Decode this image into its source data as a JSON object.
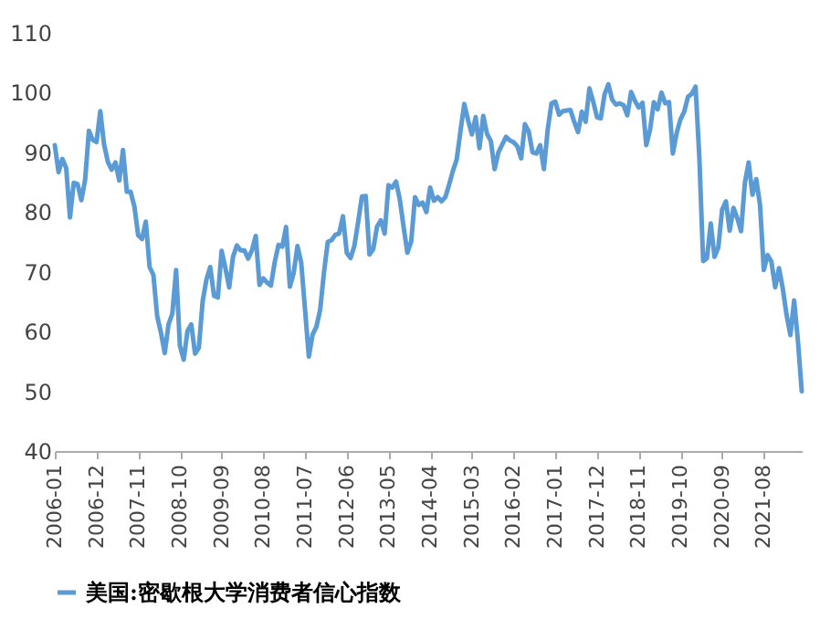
{
  "chart_data": {
    "type": "line",
    "categories": [
      "2006-01",
      null,
      null,
      null,
      null,
      null,
      null,
      null,
      null,
      null,
      null,
      "2006-12",
      null,
      null,
      null,
      null,
      null,
      null,
      null,
      null,
      null,
      null,
      "2007-11",
      null,
      null,
      null,
      null,
      null,
      null,
      null,
      null,
      null,
      null,
      "2008-10",
      null,
      null,
      null,
      null,
      null,
      null,
      null,
      null,
      null,
      null,
      "2009-09",
      null,
      null,
      null,
      null,
      null,
      null,
      null,
      null,
      null,
      null,
      "2010-08",
      null,
      null,
      null,
      null,
      null,
      null,
      null,
      null,
      null,
      null,
      "2011-07",
      null,
      null,
      null,
      null,
      null,
      null,
      null,
      null,
      null,
      null,
      "2012-06",
      null,
      null,
      null,
      null,
      null,
      null,
      null,
      null,
      null,
      null,
      "2013-05",
      null,
      null,
      null,
      null,
      null,
      null,
      null,
      null,
      null,
      null,
      "2014-04",
      null,
      null,
      null,
      null,
      null,
      null,
      null,
      null,
      null,
      null,
      "2015-03",
      null,
      null,
      null,
      null,
      null,
      null,
      null,
      null,
      null,
      null,
      "2016-02",
      null,
      null,
      null,
      null,
      null,
      null,
      null,
      null,
      null,
      null,
      "2017-01",
      null,
      null,
      null,
      null,
      null,
      null,
      null,
      null,
      null,
      null,
      "2017-12",
      null,
      null,
      null,
      null,
      null,
      null,
      null,
      null,
      null,
      null,
      "2018-11",
      null,
      null,
      null,
      null,
      null,
      null,
      null,
      null,
      null,
      null,
      "2019-10",
      null,
      null,
      null,
      null,
      null,
      null,
      null,
      null,
      null,
      null,
      "2020-09",
      null,
      null,
      null,
      null,
      null,
      null,
      null,
      null,
      null,
      null,
      "2021-08",
      null,
      null,
      null,
      null,
      null,
      null,
      null,
      null,
      null,
      null
    ],
    "series": [
      {
        "name": "美国:密歇根大学消费者信心指数",
        "color": "#5b9bd5",
        "values": [
          91.2,
          86.7,
          88.9,
          87.4,
          79.1,
          84.9,
          84.7,
          82.0,
          85.4,
          93.6,
          92.1,
          91.7,
          96.9,
          91.3,
          88.4,
          87.1,
          88.3,
          85.3,
          90.4,
          83.4,
          83.4,
          80.9,
          76.1,
          75.5,
          78.4,
          70.8,
          69.5,
          62.6,
          59.8,
          56.4,
          61.2,
          63.0,
          70.3,
          57.6,
          55.3,
          60.1,
          61.2,
          56.3,
          57.3,
          65.1,
          68.7,
          70.8,
          66.0,
          65.7,
          73.5,
          70.6,
          67.4,
          72.5,
          74.4,
          73.6,
          73.6,
          72.2,
          73.6,
          76.0,
          67.8,
          68.9,
          68.2,
          67.7,
          71.6,
          74.5,
          74.2,
          77.5,
          67.5,
          69.8,
          74.3,
          71.5,
          63.7,
          55.8,
          59.5,
          60.8,
          63.7,
          69.9,
          75.0,
          75.3,
          76.2,
          76.4,
          79.3,
          73.2,
          72.3,
          74.3,
          78.3,
          82.6,
          82.7,
          72.9,
          73.8,
          77.6,
          78.6,
          76.4,
          84.5,
          84.1,
          85.1,
          82.1,
          77.5,
          73.2,
          75.1,
          82.5,
          81.2,
          81.6,
          80.0,
          84.1,
          81.9,
          82.5,
          81.8,
          82.5,
          84.6,
          86.9,
          88.8,
          93.6,
          98.1,
          95.4,
          93.0,
          95.9,
          90.7,
          96.1,
          93.1,
          91.9,
          87.2,
          90.0,
          91.3,
          92.6,
          92.0,
          91.7,
          91.0,
          89.0,
          94.7,
          93.5,
          90.0,
          89.8,
          91.2,
          87.2,
          93.8,
          98.2,
          98.5,
          96.3,
          96.9,
          97.0,
          97.1,
          95.1,
          93.4,
          96.8,
          95.1,
          100.7,
          98.5,
          95.9,
          95.7,
          99.7,
          101.4,
          98.8,
          98.0,
          98.2,
          97.9,
          96.2,
          100.1,
          98.6,
          97.5,
          98.3,
          91.2,
          93.8,
          98.4,
          97.2,
          100.0,
          98.2,
          98.4,
          89.8,
          93.2,
          95.5,
          96.8,
          99.3,
          99.8,
          101.0,
          89.1,
          71.8,
          72.3,
          78.1,
          72.5,
          74.1,
          80.4,
          81.8,
          76.9,
          80.7,
          79.0,
          76.8,
          84.9,
          88.3,
          82.9,
          85.5,
          81.2,
          70.3,
          72.8,
          71.7,
          67.4,
          70.6,
          67.2,
          62.8,
          59.4,
          65.2,
          58.4,
          50.0
        ]
      }
    ],
    "ylim": [
      40,
      110
    ],
    "yticks": [
      40,
      50,
      60,
      70,
      80,
      90,
      100,
      110
    ],
    "grid": false,
    "legend": "bottom"
  }
}
